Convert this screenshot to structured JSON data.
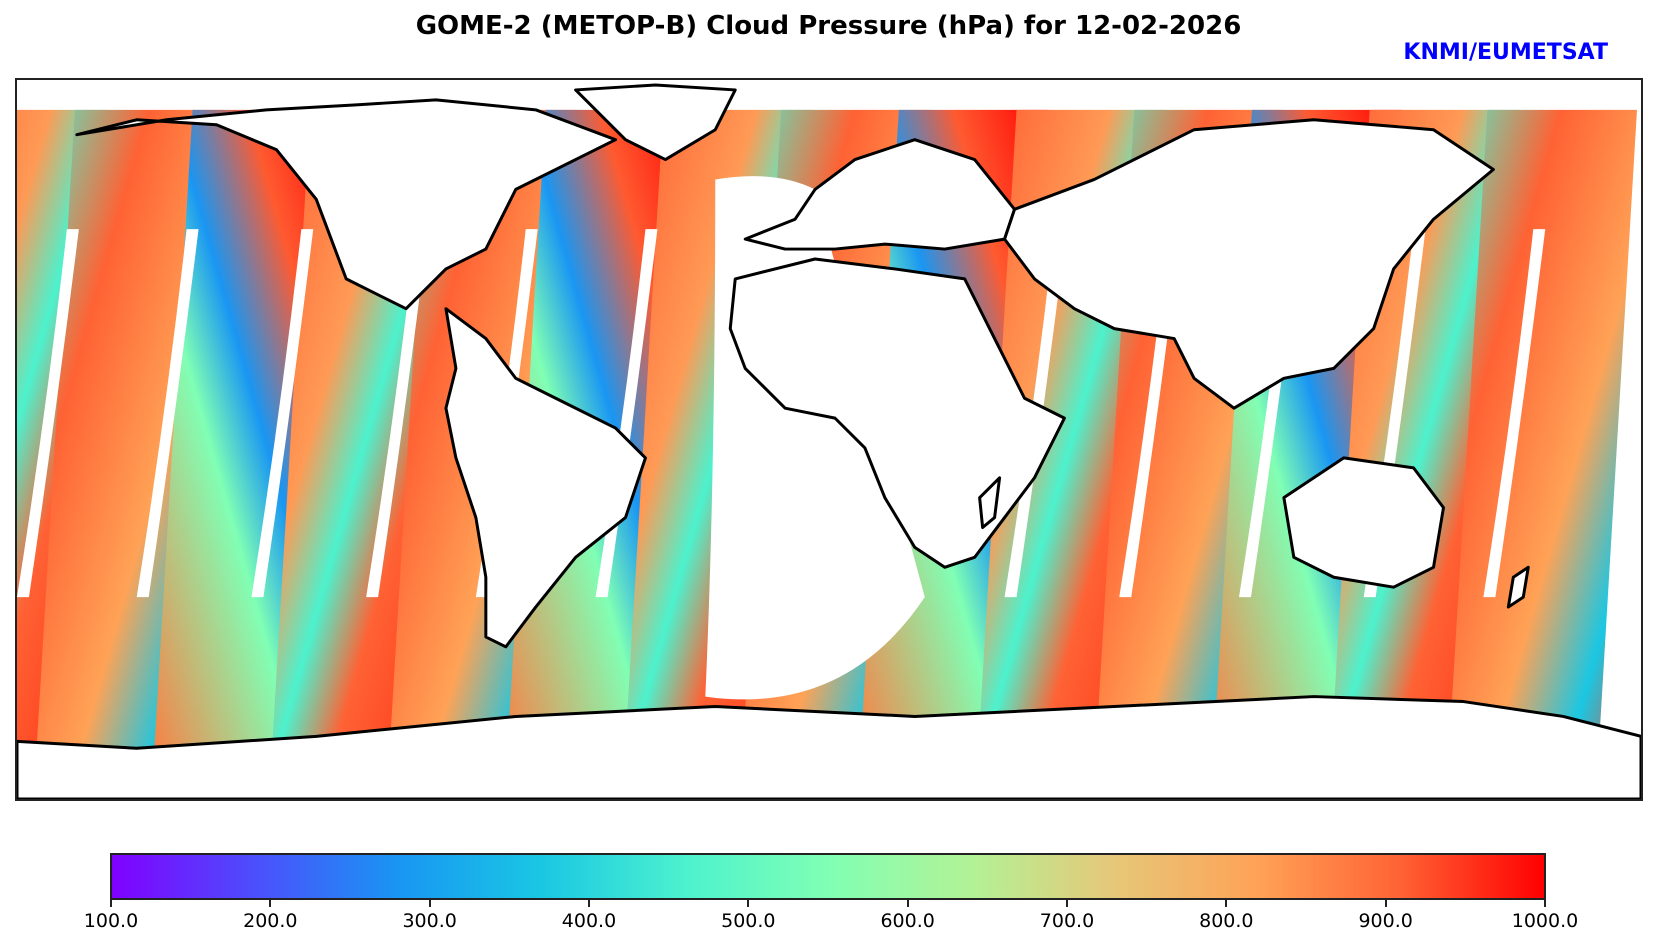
{
  "title": "GOME-2 (METOP-B) Cloud Pressure (hPa) for 12-02-2026",
  "credit": "KNMI/EUMETSAT",
  "map": {
    "projection": "PlateCarree (global)",
    "variable": "Cloud Pressure",
    "units": "hPa",
    "missing_color": "#ffffff",
    "coastline_color": "#000000"
  },
  "colorbar": {
    "colormap": "rainbow",
    "min": 100.0,
    "max": 1000.0,
    "tick_labels": [
      "100.0",
      "200.0",
      "300.0",
      "400.0",
      "500.0",
      "600.0",
      "700.0",
      "800.0",
      "900.0",
      "1000.0"
    ],
    "stops": [
      "#8000ff",
      "#4c4ffc",
      "#1996f3",
      "#1ac7e3",
      "#4cf2ce",
      "#80ffb4",
      "#b2f296",
      "#e6c778",
      "#ffa256",
      "#ff6234",
      "#ff0000"
    ]
  }
}
